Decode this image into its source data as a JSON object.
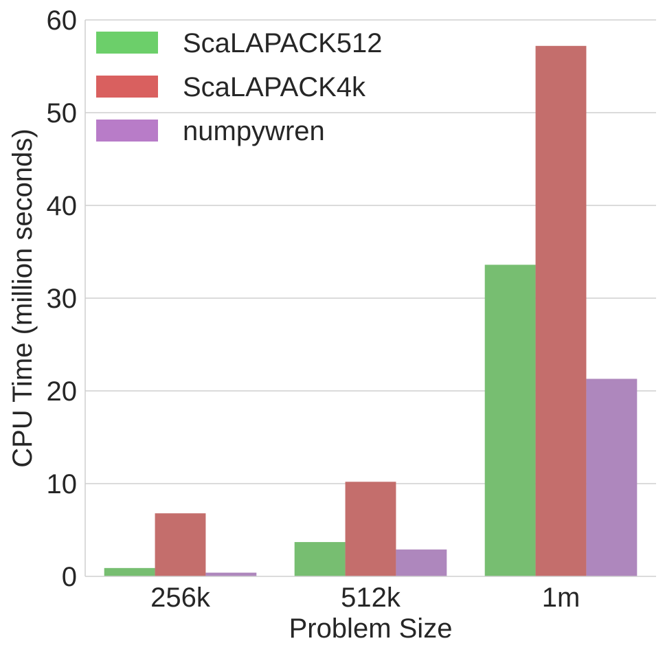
{
  "chart_data": {
    "type": "bar",
    "categories": [
      "256k",
      "512k",
      "1m"
    ],
    "series": [
      {
        "name": "ScaLAPACK512",
        "values": [
          0.9,
          3.7,
          33.6
        ],
        "color": "#77be71"
      },
      {
        "name": "ScaLAPACK4k",
        "values": [
          6.8,
          10.2,
          57.2
        ],
        "color": "#c46e6c"
      },
      {
        "name": "numpywren",
        "values": [
          0.4,
          2.9,
          21.3
        ],
        "color": "#ae87bd"
      }
    ],
    "legend_colors": [
      "#6ccf6a",
      "#d9605f",
      "#b87cc8"
    ],
    "xlabel": "Problem Size",
    "ylabel": "CPU Time (million seconds)",
    "ylim": [
      0,
      60
    ],
    "yticks": [
      0,
      10,
      20,
      30,
      40,
      50,
      60
    ],
    "grid": true,
    "legend_position": "top-left"
  }
}
